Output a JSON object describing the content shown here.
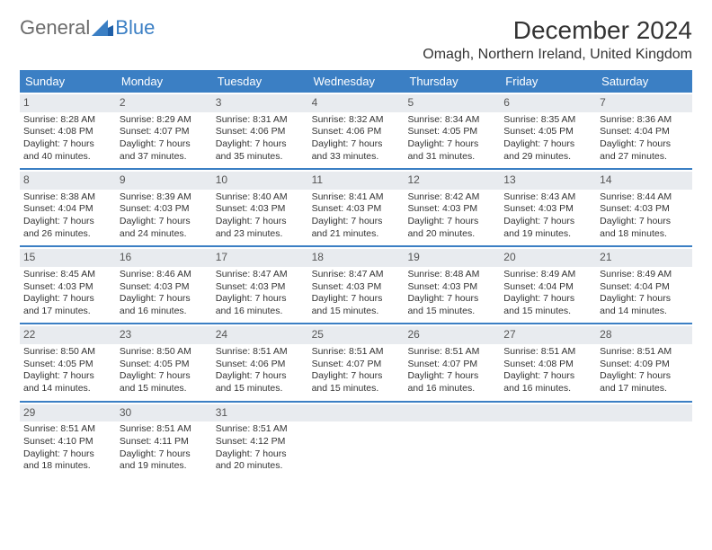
{
  "logo": {
    "text1": "General",
    "text2": "Blue"
  },
  "title": "December 2024",
  "location": "Omagh, Northern Ireland, United Kingdom",
  "colors": {
    "header_bg": "#3b7fc4",
    "header_text": "#ffffff",
    "daynum_bg": "#e8ebef",
    "week_border": "#3b7fc4",
    "body_text": "#333333",
    "background": "#ffffff",
    "logo_gray": "#6b6b6b",
    "logo_blue": "#3b7fc4"
  },
  "typography": {
    "title_fontsize": 28,
    "location_fontsize": 16,
    "dayheader_fontsize": 13,
    "cell_fontsize": 10.5,
    "daynum_fontsize": 12
  },
  "dayheaders": [
    "Sunday",
    "Monday",
    "Tuesday",
    "Wednesday",
    "Thursday",
    "Friday",
    "Saturday"
  ],
  "weeks": [
    [
      {
        "num": "1",
        "sunrise": "Sunrise: 8:28 AM",
        "sunset": "Sunset: 4:08 PM",
        "daylight": "Daylight: 7 hours and 40 minutes."
      },
      {
        "num": "2",
        "sunrise": "Sunrise: 8:29 AM",
        "sunset": "Sunset: 4:07 PM",
        "daylight": "Daylight: 7 hours and 37 minutes."
      },
      {
        "num": "3",
        "sunrise": "Sunrise: 8:31 AM",
        "sunset": "Sunset: 4:06 PM",
        "daylight": "Daylight: 7 hours and 35 minutes."
      },
      {
        "num": "4",
        "sunrise": "Sunrise: 8:32 AM",
        "sunset": "Sunset: 4:06 PM",
        "daylight": "Daylight: 7 hours and 33 minutes."
      },
      {
        "num": "5",
        "sunrise": "Sunrise: 8:34 AM",
        "sunset": "Sunset: 4:05 PM",
        "daylight": "Daylight: 7 hours and 31 minutes."
      },
      {
        "num": "6",
        "sunrise": "Sunrise: 8:35 AM",
        "sunset": "Sunset: 4:05 PM",
        "daylight": "Daylight: 7 hours and 29 minutes."
      },
      {
        "num": "7",
        "sunrise": "Sunrise: 8:36 AM",
        "sunset": "Sunset: 4:04 PM",
        "daylight": "Daylight: 7 hours and 27 minutes."
      }
    ],
    [
      {
        "num": "8",
        "sunrise": "Sunrise: 8:38 AM",
        "sunset": "Sunset: 4:04 PM",
        "daylight": "Daylight: 7 hours and 26 minutes."
      },
      {
        "num": "9",
        "sunrise": "Sunrise: 8:39 AM",
        "sunset": "Sunset: 4:03 PM",
        "daylight": "Daylight: 7 hours and 24 minutes."
      },
      {
        "num": "10",
        "sunrise": "Sunrise: 8:40 AM",
        "sunset": "Sunset: 4:03 PM",
        "daylight": "Daylight: 7 hours and 23 minutes."
      },
      {
        "num": "11",
        "sunrise": "Sunrise: 8:41 AM",
        "sunset": "Sunset: 4:03 PM",
        "daylight": "Daylight: 7 hours and 21 minutes."
      },
      {
        "num": "12",
        "sunrise": "Sunrise: 8:42 AM",
        "sunset": "Sunset: 4:03 PM",
        "daylight": "Daylight: 7 hours and 20 minutes."
      },
      {
        "num": "13",
        "sunrise": "Sunrise: 8:43 AM",
        "sunset": "Sunset: 4:03 PM",
        "daylight": "Daylight: 7 hours and 19 minutes."
      },
      {
        "num": "14",
        "sunrise": "Sunrise: 8:44 AM",
        "sunset": "Sunset: 4:03 PM",
        "daylight": "Daylight: 7 hours and 18 minutes."
      }
    ],
    [
      {
        "num": "15",
        "sunrise": "Sunrise: 8:45 AM",
        "sunset": "Sunset: 4:03 PM",
        "daylight": "Daylight: 7 hours and 17 minutes."
      },
      {
        "num": "16",
        "sunrise": "Sunrise: 8:46 AM",
        "sunset": "Sunset: 4:03 PM",
        "daylight": "Daylight: 7 hours and 16 minutes."
      },
      {
        "num": "17",
        "sunrise": "Sunrise: 8:47 AM",
        "sunset": "Sunset: 4:03 PM",
        "daylight": "Daylight: 7 hours and 16 minutes."
      },
      {
        "num": "18",
        "sunrise": "Sunrise: 8:47 AM",
        "sunset": "Sunset: 4:03 PM",
        "daylight": "Daylight: 7 hours and 15 minutes."
      },
      {
        "num": "19",
        "sunrise": "Sunrise: 8:48 AM",
        "sunset": "Sunset: 4:03 PM",
        "daylight": "Daylight: 7 hours and 15 minutes."
      },
      {
        "num": "20",
        "sunrise": "Sunrise: 8:49 AM",
        "sunset": "Sunset: 4:04 PM",
        "daylight": "Daylight: 7 hours and 15 minutes."
      },
      {
        "num": "21",
        "sunrise": "Sunrise: 8:49 AM",
        "sunset": "Sunset: 4:04 PM",
        "daylight": "Daylight: 7 hours and 14 minutes."
      }
    ],
    [
      {
        "num": "22",
        "sunrise": "Sunrise: 8:50 AM",
        "sunset": "Sunset: 4:05 PM",
        "daylight": "Daylight: 7 hours and 14 minutes."
      },
      {
        "num": "23",
        "sunrise": "Sunrise: 8:50 AM",
        "sunset": "Sunset: 4:05 PM",
        "daylight": "Daylight: 7 hours and 15 minutes."
      },
      {
        "num": "24",
        "sunrise": "Sunrise: 8:51 AM",
        "sunset": "Sunset: 4:06 PM",
        "daylight": "Daylight: 7 hours and 15 minutes."
      },
      {
        "num": "25",
        "sunrise": "Sunrise: 8:51 AM",
        "sunset": "Sunset: 4:07 PM",
        "daylight": "Daylight: 7 hours and 15 minutes."
      },
      {
        "num": "26",
        "sunrise": "Sunrise: 8:51 AM",
        "sunset": "Sunset: 4:07 PM",
        "daylight": "Daylight: 7 hours and 16 minutes."
      },
      {
        "num": "27",
        "sunrise": "Sunrise: 8:51 AM",
        "sunset": "Sunset: 4:08 PM",
        "daylight": "Daylight: 7 hours and 16 minutes."
      },
      {
        "num": "28",
        "sunrise": "Sunrise: 8:51 AM",
        "sunset": "Sunset: 4:09 PM",
        "daylight": "Daylight: 7 hours and 17 minutes."
      }
    ],
    [
      {
        "num": "29",
        "sunrise": "Sunrise: 8:51 AM",
        "sunset": "Sunset: 4:10 PM",
        "daylight": "Daylight: 7 hours and 18 minutes."
      },
      {
        "num": "30",
        "sunrise": "Sunrise: 8:51 AM",
        "sunset": "Sunset: 4:11 PM",
        "daylight": "Daylight: 7 hours and 19 minutes."
      },
      {
        "num": "31",
        "sunrise": "Sunrise: 8:51 AM",
        "sunset": "Sunset: 4:12 PM",
        "daylight": "Daylight: 7 hours and 20 minutes."
      },
      {
        "empty": true
      },
      {
        "empty": true
      },
      {
        "empty": true
      },
      {
        "empty": true
      }
    ]
  ]
}
